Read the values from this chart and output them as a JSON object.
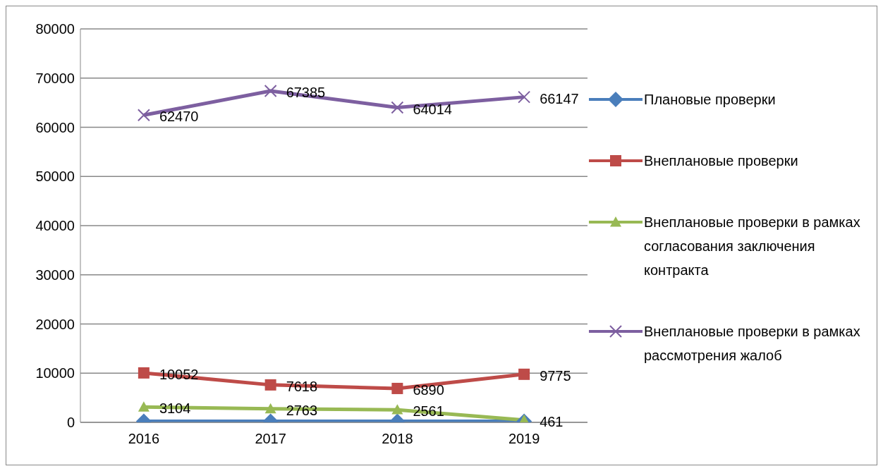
{
  "chart_data": {
    "type": "line",
    "categories": [
      "2016",
      "2017",
      "2018",
      "2019"
    ],
    "series": [
      {
        "name": "Плановые проверки",
        "color": "#4a7ebb",
        "marker": "diamond",
        "values": [
          200,
          200,
          200,
          200
        ]
      },
      {
        "name": "Внеплановые проверки",
        "color": "#be4b48",
        "marker": "square",
        "values": [
          10052,
          7618,
          6890,
          9775
        ],
        "value_labels": [
          "10052",
          "7618",
          "6890",
          "9775"
        ]
      },
      {
        "name": "Внеплановые проверки в рамках согласования заключения контракта",
        "color": "#98b954",
        "marker": "triangle",
        "values": [
          3104,
          2763,
          2561,
          461
        ],
        "value_labels": [
          "3104",
          "2763",
          "2561",
          "461"
        ]
      },
      {
        "name": "Внеплановые проверки в рамках рассмотрения жалоб",
        "color": "#7d5fa0",
        "marker": "cross",
        "values": [
          62470,
          67385,
          64014,
          66147
        ],
        "value_labels": [
          "62470",
          "67385",
          "64014",
          "66147"
        ]
      }
    ],
    "ylim": [
      0,
      80000
    ],
    "yticks": [
      0,
      10000,
      20000,
      30000,
      40000,
      50000,
      60000,
      70000,
      80000
    ],
    "grid": "y",
    "legend": "right"
  }
}
